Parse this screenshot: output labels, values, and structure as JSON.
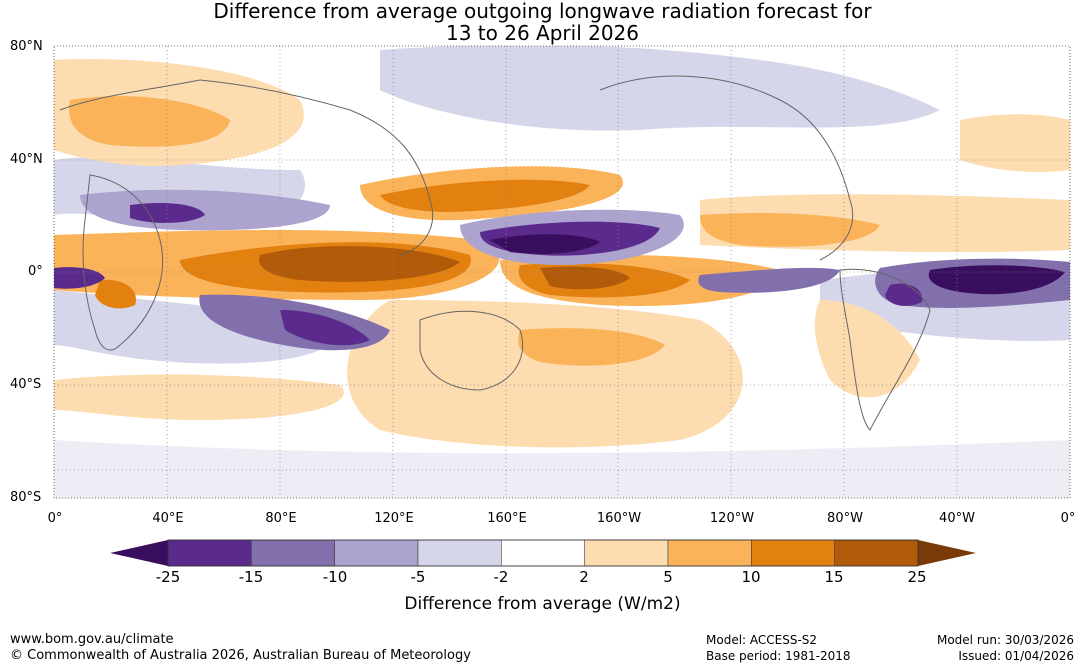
{
  "title_line1": "Difference from average outgoing longwave radiation forecast for",
  "title_line2": "13 to 26 April 2026",
  "lat_labels": [
    "80°N",
    "40°N",
    "0°",
    "40°S",
    "80°S"
  ],
  "lon_labels": [
    "0°",
    "40°E",
    "80°E",
    "120°E",
    "160°E",
    "160°W",
    "120°W",
    "80°W",
    "40°W",
    "0°"
  ],
  "legend": {
    "title": "Difference from average (W/m2)",
    "ticks": [
      "-25",
      "-15",
      "-10",
      "-5",
      "-2",
      "2",
      "5",
      "10",
      "15",
      "25"
    ],
    "colors": [
      "#3a0e5e",
      "#5a2a8c",
      "#8170ac",
      "#aca4cf",
      "#d6d6ea",
      "#ffffff",
      "#fddcb0",
      "#fbb35a",
      "#e28010",
      "#b05a0a",
      "#7a3a08"
    ]
  },
  "footer": {
    "website": "www.bom.gov.au/climate",
    "copyright": "© Commonwealth of Australia 2026, Australian Bureau of Meteorology",
    "model": "Model: ACCESS-S2",
    "base_period": "Base period: 1981-2018",
    "model_run": "Model run: 30/03/2026",
    "issued": "Issued: 01/04/2026"
  }
}
